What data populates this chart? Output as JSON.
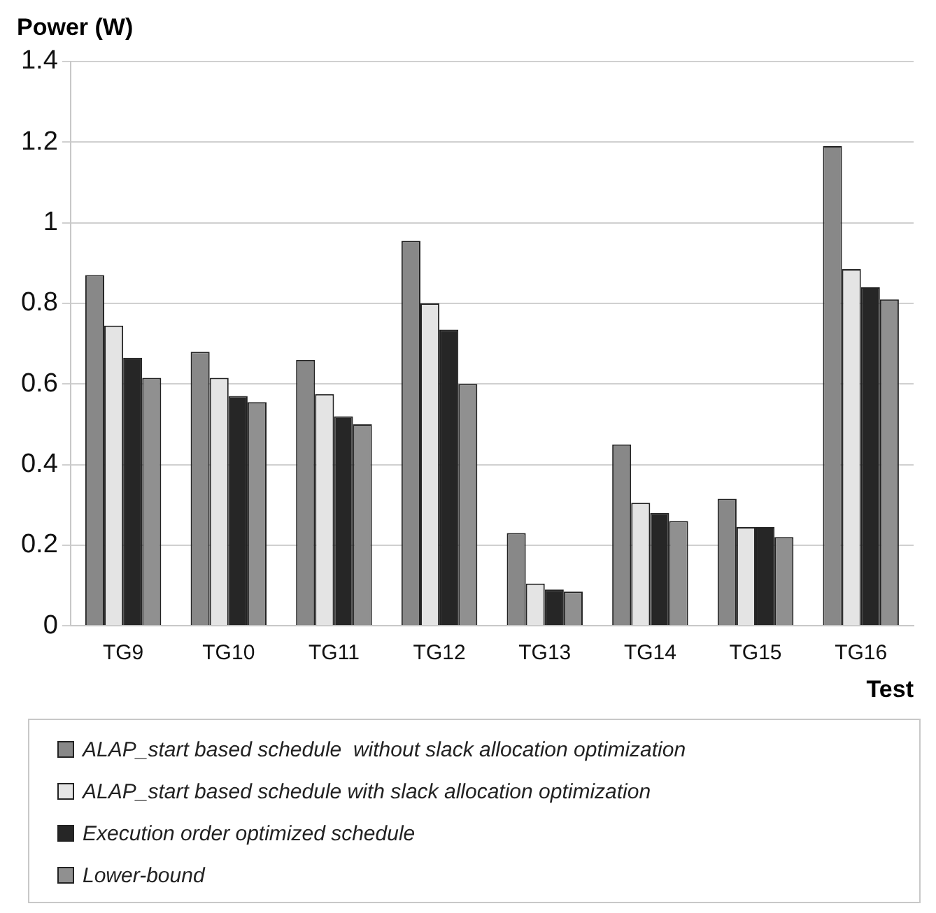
{
  "chart_data": {
    "type": "bar",
    "ylabel": "Power (W)",
    "xlabel": "Test",
    "categories": [
      "TG9",
      "TG10",
      "TG11",
      "TG12",
      "TG13",
      "TG14",
      "TG15",
      "TG16"
    ],
    "series": [
      {
        "name": "ALAP_start based schedule  without slack allocation optimization",
        "color": "#888888",
        "values": [
          0.87,
          0.68,
          0.66,
          0.955,
          0.23,
          0.45,
          0.315,
          1.19
        ]
      },
      {
        "name": "ALAP_start based schedule with slack allocation optimization",
        "color": "#e4e4e4",
        "values": [
          0.745,
          0.615,
          0.575,
          0.8,
          0.105,
          0.305,
          0.245,
          0.885
        ]
      },
      {
        "name": "Execution order optimized schedule",
        "color": "#262626",
        "values": [
          0.665,
          0.57,
          0.52,
          0.735,
          0.09,
          0.28,
          0.245,
          0.84
        ]
      },
      {
        "name": "Lower-bound",
        "color": "#909090",
        "values": [
          0.615,
          0.555,
          0.5,
          0.6,
          0.085,
          0.26,
          0.22,
          0.81
        ]
      }
    ],
    "ylim": [
      0,
      1.4
    ],
    "yticks": [
      0,
      0.2,
      0.4,
      0.6,
      0.8,
      1,
      1.2,
      1.4
    ],
    "grid": "y",
    "legend": "bottom"
  }
}
